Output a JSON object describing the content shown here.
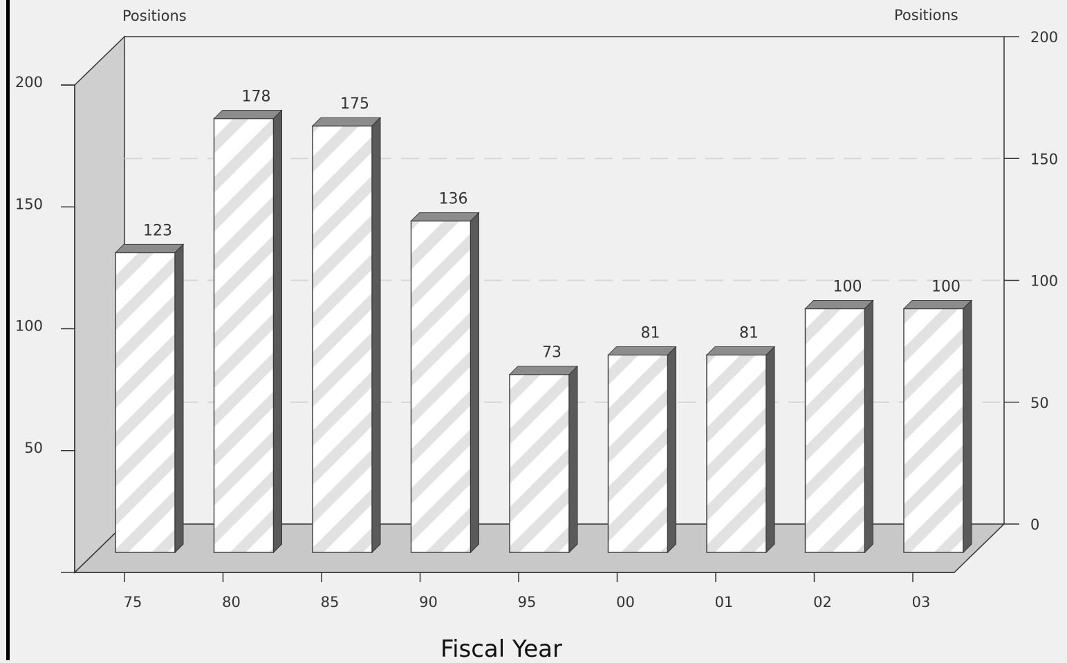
{
  "chart_data": {
    "type": "bar",
    "categories": [
      "75",
      "80",
      "85",
      "90",
      "95",
      "00",
      "01",
      "02",
      "03"
    ],
    "values": [
      123,
      178,
      175,
      136,
      73,
      81,
      81,
      100,
      100
    ],
    "xlabel": "Fiscal Year",
    "ylabel_left": "Positions",
    "ylabel_right": "Positions",
    "ylim": [
      0,
      200
    ],
    "yticks_left": [
      "200",
      "150",
      "100",
      "50"
    ],
    "yticks_right": [
      "200",
      "150",
      "100",
      "50",
      "0"
    ],
    "grid": true,
    "style": "3d-hatched-bars",
    "colors": {
      "bar_face": "#ffffff",
      "bar_hatch": "#e2e2e2",
      "bar_top": "#8c8c8c",
      "bar_side": "#5a5a5a",
      "floor": "#c8c8c8",
      "wall": "#cfcfcf",
      "background": "#f0f0f0",
      "grid": "#d6d6d6",
      "frame_left": "#000000"
    }
  }
}
